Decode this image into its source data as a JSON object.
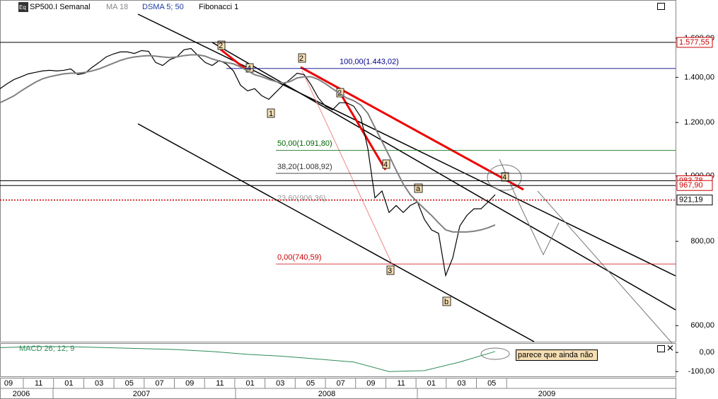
{
  "chart_data": {
    "type": "line",
    "title": "SP500.I Semanal",
    "indicators": [
      "MA 18",
      "DSMA 5; 50",
      "Fibonacci 1"
    ],
    "log_scale": true,
    "ylim": [
      568,
      1823
    ],
    "yticks": [
      {
        "value": 600,
        "label": "600,00"
      },
      {
        "value": 800,
        "label": "800,00"
      },
      {
        "value": 1000,
        "label": "1.000,00"
      },
      {
        "value": 1200,
        "label": "1.200,00"
      },
      {
        "value": 1400,
        "label": "1.400,00"
      },
      {
        "value": 1600,
        "label": "1.600,00"
      }
    ],
    "x_labels": [
      "09",
      "11",
      "01",
      "03",
      "05",
      "07",
      "09",
      "11",
      "01",
      "03",
      "05",
      "07",
      "09",
      "11",
      "01",
      "03",
      "05"
    ],
    "years": [
      "2006",
      "2007",
      "2008",
      "2009"
    ],
    "series": [
      {
        "color": "#000000",
        "values": [
          1347,
          1370,
          1390,
          1403,
          1417,
          1424,
          1431,
          1434,
          1431,
          1434,
          1441,
          1413,
          1420,
          1448,
          1473,
          1501,
          1516,
          1527,
          1527,
          1519,
          1534,
          1530,
          1473,
          1458,
          1487,
          1501,
          1538,
          1545,
          1508,
          1473,
          1458,
          1483,
          1466,
          1431,
          1363,
          1337,
          1347,
          1315,
          1299,
          1331,
          1363,
          1390,
          1420,
          1413,
          1363,
          1305,
          1269,
          1253,
          1284,
          1284,
          1269,
          1223,
          1098,
          928,
          950,
          883,
          904,
          883,
          904,
          915,
          862,
          832,
          822,
          712,
          756,
          843,
          874,
          894,
          894,
          915,
          938
        ]
      },
      {
        "color": "#808080",
        "values": [
          1284,
          1299,
          1315,
          1337,
          1357,
          1377,
          1393,
          1403,
          1410,
          1417,
          1420,
          1420,
          1424,
          1431,
          1441,
          1455,
          1469,
          1483,
          1494,
          1501,
          1505,
          1508,
          1505,
          1501,
          1498,
          1501,
          1508,
          1512,
          1512,
          1505,
          1491,
          1480,
          1473,
          1466,
          1451,
          1431,
          1413,
          1403,
          1390,
          1380,
          1373,
          1380,
          1397,
          1403,
          1403,
          1390,
          1370,
          1347,
          1325,
          1305,
          1293,
          1274,
          1238,
          1180,
          1125,
          1072,
          1020,
          973,
          938,
          915,
          894,
          874,
          852,
          832,
          826,
          826,
          826,
          828,
          832,
          838,
          846
        ]
      }
    ],
    "fibonacci": [
      {
        "label": "100,00(1.443,02)",
        "value": 1443.02,
        "color": "#00008b"
      },
      {
        "label": "50,00(1.091,80)",
        "value": 1091.8,
        "color": "#006400"
      },
      {
        "label": "38,20(1.008,92)",
        "value": 1008.92,
        "color": "#333333"
      },
      {
        "label": "23,60(906,36)",
        "value": 906.36,
        "color": "#999999"
      },
      {
        "label": "0,00(740,59)",
        "value": 740.59,
        "color": "#cc0000"
      }
    ],
    "price_labels": [
      {
        "value": 1577.55,
        "label": "1.577,55",
        "color": "#cc0000"
      },
      {
        "value": 983.78,
        "label": "983,78",
        "color": "#cc0000"
      },
      {
        "value": 967.9,
        "label": "967,90",
        "color": "#cc0000"
      },
      {
        "value": 921.19,
        "label": "921,19",
        "color": "#000000"
      }
    ],
    "waves": [
      "2",
      "4",
      "1",
      "2",
      "2",
      "4",
      "3",
      "a",
      "b",
      "4"
    ],
    "macd": {
      "title": "MACD 26; 12; 9",
      "ylim": [
        -125,
        45
      ],
      "yticks": [
        {
          "value": 0,
          "label": "0,00"
        },
        {
          "value": -100,
          "label": "-100,00"
        }
      ],
      "color": "#2e8b57",
      "values": [
        25,
        30,
        30,
        25,
        20,
        15,
        5,
        -10,
        -20,
        -35,
        -50,
        -100,
        -95,
        -50,
        5
      ],
      "note": "parece que ainda não"
    }
  }
}
